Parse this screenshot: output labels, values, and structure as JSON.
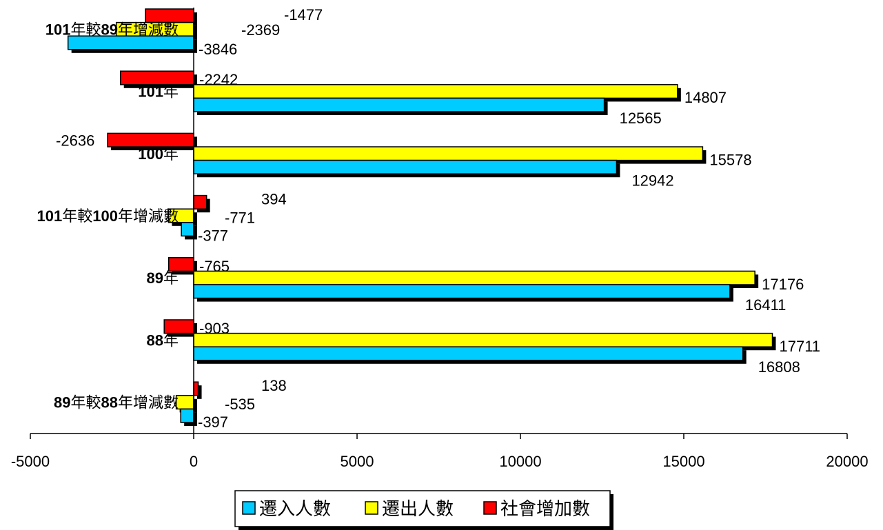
{
  "chart_data": {
    "type": "bar",
    "orientation": "horizontal",
    "categories": [
      {
        "parts": [
          {
            "text": "101",
            "bold": true
          },
          {
            "text": "年較",
            "bold": false
          },
          {
            "text": "89",
            "bold": true
          },
          {
            "text": "年增減數",
            "bold": false
          }
        ]
      },
      {
        "parts": [
          {
            "text": "101",
            "bold": true
          },
          {
            "text": "年",
            "bold": false
          }
        ]
      },
      {
        "parts": [
          {
            "text": "100",
            "bold": true
          },
          {
            "text": "年",
            "bold": false
          }
        ]
      },
      {
        "parts": [
          {
            "text": "101",
            "bold": true
          },
          {
            "text": "年較",
            "bold": false
          },
          {
            "text": "100",
            "bold": true
          },
          {
            "text": "年增減數",
            "bold": false
          }
        ]
      },
      {
        "parts": [
          {
            "text": "89",
            "bold": true
          },
          {
            "text": "年",
            "bold": false
          }
        ]
      },
      {
        "parts": [
          {
            "text": "88",
            "bold": true
          },
          {
            "text": "年",
            "bold": false
          }
        ]
      },
      {
        "parts": [
          {
            "text": "89",
            "bold": true
          },
          {
            "text": "年較",
            "bold": false
          },
          {
            "text": "88",
            "bold": true
          },
          {
            "text": "年增減數",
            "bold": false
          }
        ]
      }
    ],
    "series": [
      {
        "name": "社會增加數",
        "color": "#ff0000",
        "values": [
          -1477,
          -2242,
          -2636,
          394,
          -765,
          -903,
          138
        ]
      },
      {
        "name": "遷出人數",
        "color": "#ffff00",
        "values": [
          -2369,
          14807,
          15578,
          -771,
          17176,
          17711,
          -535
        ]
      },
      {
        "name": "遷入人數",
        "color": "#00ccff",
        "values": [
          -3846,
          12565,
          12942,
          -377,
          16411,
          16808,
          -397
        ]
      }
    ],
    "xlim": [
      -5000,
      20000
    ],
    "xticks": [
      -5000,
      0,
      5000,
      10000,
      15000,
      20000
    ],
    "xtick_labels": [
      "-5000",
      "0",
      "5000",
      "10000",
      "15000",
      "20000"
    ],
    "legend": {
      "position": "bottom",
      "entries": [
        {
          "name": "遷入人數",
          "color": "#00ccff"
        },
        {
          "name": "遷出人數",
          "color": "#ffff00"
        },
        {
          "name": "社會增加數",
          "color": "#ff0000"
        }
      ]
    },
    "grid": false
  }
}
